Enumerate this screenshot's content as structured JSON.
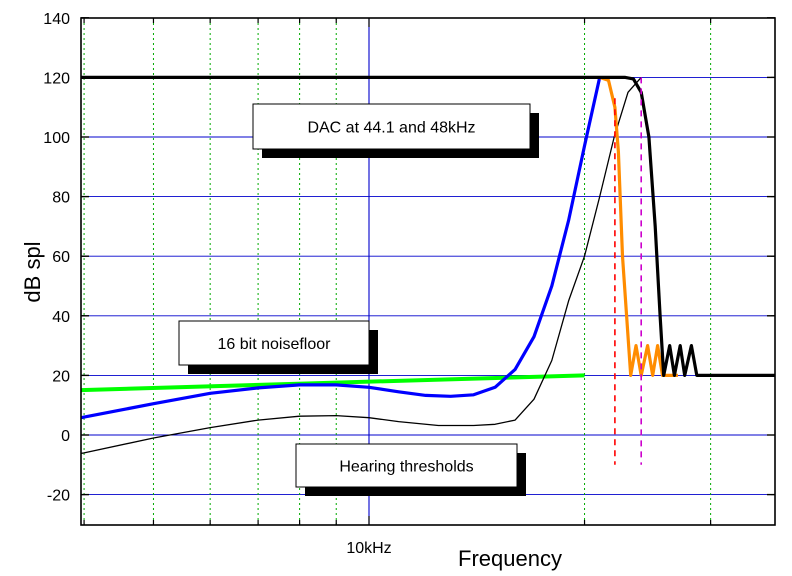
{
  "chart_data": {
    "type": "line",
    "title": "",
    "xlabel": "Frequency",
    "ylabel": "dB spl",
    "ylim": [
      -30,
      140
    ],
    "yticks": [
      -20,
      0,
      20,
      40,
      60,
      80,
      100,
      120,
      140
    ],
    "x_scale": "log",
    "xlim_hz": [
      2000,
      50000
    ],
    "x_tick_labels": [
      {
        "x": 10000,
        "label": "10kHz"
      }
    ],
    "grid": "on",
    "annotations": [
      {
        "text": "DAC at 44.1 and 48kHz"
      },
      {
        "text": "16 bit noisefloor"
      },
      {
        "text": "Hearing thresholds"
      }
    ],
    "series": [
      {
        "color": "#00ff00",
        "style": "solid",
        "points": [
          [
            2000,
            13
          ],
          [
            20000,
            20
          ]
        ]
      },
      {
        "color": "#0000ff",
        "style": "solid",
        "points": [
          [
            2000,
            -4.5
          ],
          [
            2300,
            -3.5
          ],
          [
            2600,
            -2
          ],
          [
            3000,
            0
          ],
          [
            3500,
            3
          ],
          [
            4000,
            6
          ],
          [
            5000,
            10.5
          ],
          [
            6000,
            14
          ],
          [
            7000,
            15.8
          ],
          [
            8000,
            16.8
          ],
          [
            9000,
            16.8
          ],
          [
            10000,
            16
          ],
          [
            11000,
            14.5
          ],
          [
            12000,
            13.3
          ],
          [
            13000,
            13
          ],
          [
            14000,
            13.5
          ],
          [
            15000,
            16
          ],
          [
            16000,
            22
          ],
          [
            17000,
            33
          ],
          [
            18000,
            50
          ],
          [
            19000,
            72
          ],
          [
            20000,
            97
          ],
          [
            21000,
            120
          ]
        ]
      },
      {
        "color": "#000000",
        "style": "thin",
        "points": [
          [
            2000,
            -14.5
          ],
          [
            2500,
            -13
          ],
          [
            3000,
            -11
          ],
          [
            4000,
            -6
          ],
          [
            5000,
            -1
          ],
          [
            6000,
            2.5
          ],
          [
            7000,
            5
          ],
          [
            8000,
            6.3
          ],
          [
            9000,
            6.5
          ],
          [
            10000,
            5.8
          ],
          [
            11000,
            4.5
          ],
          [
            12500,
            3.2
          ],
          [
            14000,
            3.2
          ],
          [
            15000,
            3.6
          ],
          [
            16000,
            5
          ],
          [
            17000,
            12
          ],
          [
            18000,
            25
          ],
          [
            19000,
            45
          ],
          [
            20000,
            60
          ],
          [
            21000,
            80
          ],
          [
            22000,
            100
          ],
          [
            23000,
            115
          ],
          [
            24000,
            120
          ]
        ]
      },
      {
        "color": "#ff8c00",
        "style": "solid",
        "points": [
          [
            21000,
            120
          ],
          [
            21600,
            119
          ],
          [
            22050,
            110
          ],
          [
            22300,
            95
          ],
          [
            22600,
            60
          ],
          [
            22900,
            40
          ],
          [
            23200,
            20
          ],
          [
            23600,
            30
          ],
          [
            24000,
            20
          ],
          [
            24500,
            30
          ],
          [
            24900,
            20
          ],
          [
            25300,
            30
          ],
          [
            25700,
            20
          ],
          [
            27000,
            20
          ]
        ]
      },
      {
        "color": "#000000",
        "style": "bold",
        "points": [
          [
            2000,
            120
          ],
          [
            22800,
            120
          ],
          [
            23400,
            119.5
          ],
          [
            24000,
            115
          ],
          [
            24600,
            100
          ],
          [
            25100,
            70
          ],
          [
            25500,
            40
          ],
          [
            25800,
            20
          ],
          [
            26300,
            30
          ],
          [
            26700,
            20
          ],
          [
            27200,
            30
          ],
          [
            27600,
            20
          ],
          [
            28200,
            30
          ],
          [
            28700,
            20
          ],
          [
            50000,
            20
          ]
        ]
      },
      {
        "color": "#ff0000",
        "style": "dashed",
        "points": [
          [
            22050,
            113
          ],
          [
            22050,
            -10
          ]
        ]
      },
      {
        "color": "#cc00cc",
        "style": "dashed",
        "points": [
          [
            24000,
            120
          ],
          [
            24000,
            -10
          ]
        ]
      }
    ]
  }
}
